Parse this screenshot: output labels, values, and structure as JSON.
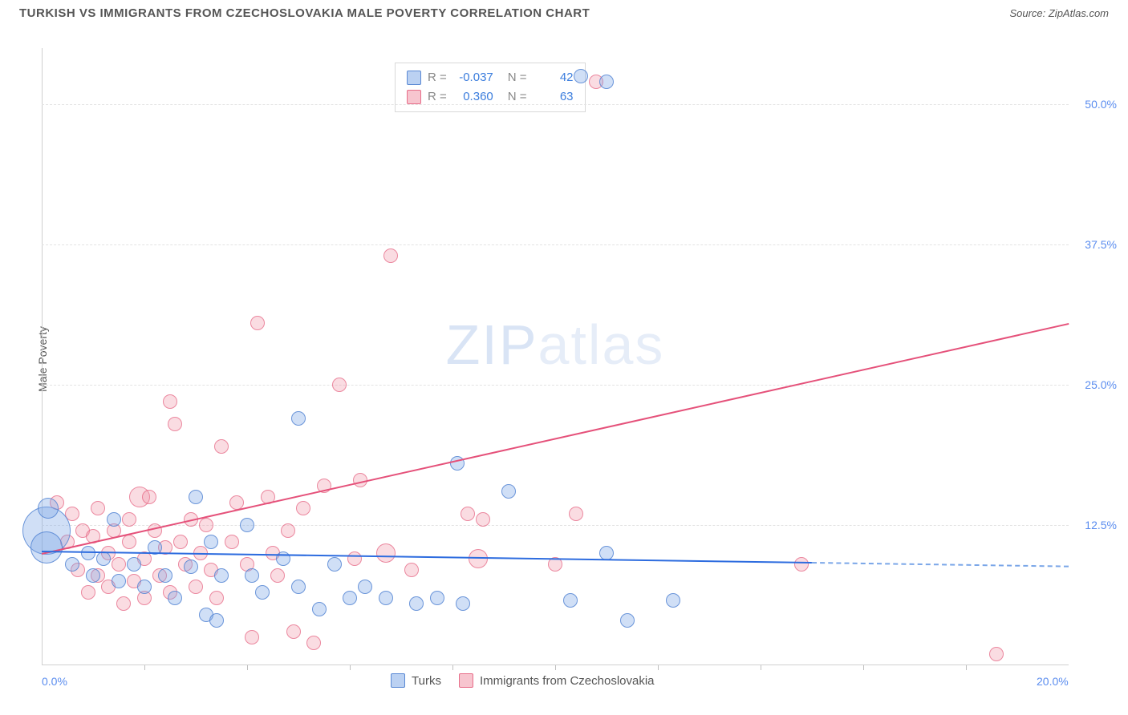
{
  "header": {
    "title": "TURKISH VS IMMIGRANTS FROM CZECHOSLOVAKIA MALE POVERTY CORRELATION CHART",
    "source": "Source: ZipAtlas.com"
  },
  "chart": {
    "type": "scatter",
    "ylabel": "Male Poverty",
    "watermark_a": "ZIP",
    "watermark_b": "atlas",
    "xlim": [
      0,
      20
    ],
    "ylim": [
      0,
      55
    ],
    "y_ticks": [
      {
        "v": 12.5,
        "label": "12.5%"
      },
      {
        "v": 25.0,
        "label": "25.0%"
      },
      {
        "v": 37.5,
        "label": "37.5%"
      },
      {
        "v": 50.0,
        "label": "50.0%"
      }
    ],
    "x_ticks_minor": [
      2,
      4,
      6,
      8,
      10,
      12,
      14,
      16,
      18
    ],
    "x_labels": [
      {
        "v": 0,
        "label": "0.0%"
      },
      {
        "v": 20,
        "label": "20.0%"
      }
    ],
    "colors": {
      "blue_fill": "rgba(120,164,230,0.35)",
      "blue_stroke": "rgba(80,130,210,0.8)",
      "pink_fill": "rgba(240,140,160,0.3)",
      "pink_stroke": "rgba(230,100,130,0.7)",
      "blue_line": "#2d6cdf",
      "pink_line": "#e5517a",
      "grid": "#e3e3e3",
      "background": "#ffffff",
      "tick_text": "#5b8def"
    },
    "marker_radius_default": 9,
    "legend_top": {
      "rows": [
        {
          "swatch": "blue",
          "r_label": "R =",
          "r_val": "-0.037",
          "n_label": "N =",
          "n_val": "42"
        },
        {
          "swatch": "pink",
          "r_label": "R =",
          "r_val": "0.360",
          "n_label": "N =",
          "n_val": "63"
        }
      ]
    },
    "legend_bottom": [
      {
        "swatch": "blue",
        "label": "Turks"
      },
      {
        "swatch": "pink",
        "label": "Immigrants from Czechoslovakia"
      }
    ],
    "trend_lines": {
      "blue": {
        "x1": 0,
        "y1": 10.2,
        "x2": 15,
        "y2": 9.2,
        "dash_to_x": 20
      },
      "pink": {
        "x1": 0,
        "y1": 10.0,
        "x2": 20,
        "y2": 30.5
      }
    },
    "series": {
      "blue": [
        {
          "x": 0.1,
          "y": 12.0,
          "r": 30
        },
        {
          "x": 0.1,
          "y": 10.5,
          "r": 20
        },
        {
          "x": 0.12,
          "y": 14.0,
          "r": 13
        },
        {
          "x": 0.6,
          "y": 9.0
        },
        {
          "x": 0.9,
          "y": 10.0
        },
        {
          "x": 1.0,
          "y": 8.0
        },
        {
          "x": 1.2,
          "y": 9.5
        },
        {
          "x": 1.4,
          "y": 13.0
        },
        {
          "x": 1.5,
          "y": 7.5
        },
        {
          "x": 1.8,
          "y": 9.0
        },
        {
          "x": 2.0,
          "y": 7.0
        },
        {
          "x": 2.2,
          "y": 10.5
        },
        {
          "x": 2.4,
          "y": 8.0
        },
        {
          "x": 2.6,
          "y": 6.0
        },
        {
          "x": 2.9,
          "y": 8.8
        },
        {
          "x": 3.0,
          "y": 15.0
        },
        {
          "x": 3.2,
          "y": 4.5
        },
        {
          "x": 3.3,
          "y": 11.0
        },
        {
          "x": 3.4,
          "y": 4.0
        },
        {
          "x": 3.5,
          "y": 8.0
        },
        {
          "x": 4.0,
          "y": 12.5
        },
        {
          "x": 4.1,
          "y": 8.0
        },
        {
          "x": 4.3,
          "y": 6.5
        },
        {
          "x": 4.7,
          "y": 9.5
        },
        {
          "x": 5.0,
          "y": 22.0
        },
        {
          "x": 5.0,
          "y": 7.0
        },
        {
          "x": 5.4,
          "y": 5.0
        },
        {
          "x": 5.7,
          "y": 9.0
        },
        {
          "x": 6.0,
          "y": 6.0
        },
        {
          "x": 6.3,
          "y": 7.0
        },
        {
          "x": 6.7,
          "y": 6.0
        },
        {
          "x": 7.3,
          "y": 5.5
        },
        {
          "x": 7.7,
          "y": 6.0
        },
        {
          "x": 8.1,
          "y": 18.0
        },
        {
          "x": 8.2,
          "y": 5.5
        },
        {
          "x": 9.1,
          "y": 15.5
        },
        {
          "x": 10.3,
          "y": 5.8
        },
        {
          "x": 11.4,
          "y": 4.0
        },
        {
          "x": 12.3,
          "y": 5.8
        },
        {
          "x": 11.0,
          "y": 10.0
        },
        {
          "x": 11.0,
          "y": 52.0
        },
        {
          "x": 10.5,
          "y": 52.5
        }
      ],
      "pink": [
        {
          "x": 0.3,
          "y": 14.5
        },
        {
          "x": 0.5,
          "y": 11.0
        },
        {
          "x": 0.6,
          "y": 13.5
        },
        {
          "x": 0.7,
          "y": 8.5
        },
        {
          "x": 0.8,
          "y": 12.0
        },
        {
          "x": 0.9,
          "y": 6.5
        },
        {
          "x": 1.0,
          "y": 11.5
        },
        {
          "x": 1.1,
          "y": 8.0
        },
        {
          "x": 1.1,
          "y": 14.0
        },
        {
          "x": 1.3,
          "y": 10.0
        },
        {
          "x": 1.3,
          "y": 7.0
        },
        {
          "x": 1.4,
          "y": 12.0
        },
        {
          "x": 1.5,
          "y": 9.0
        },
        {
          "x": 1.6,
          "y": 5.5
        },
        {
          "x": 1.7,
          "y": 13.0
        },
        {
          "x": 1.7,
          "y": 11.0
        },
        {
          "x": 1.8,
          "y": 7.5
        },
        {
          "x": 1.9,
          "y": 15.0,
          "r": 13
        },
        {
          "x": 2.0,
          "y": 9.5
        },
        {
          "x": 2.0,
          "y": 6.0
        },
        {
          "x": 2.1,
          "y": 15.0
        },
        {
          "x": 2.2,
          "y": 12.0
        },
        {
          "x": 2.3,
          "y": 8.0
        },
        {
          "x": 2.4,
          "y": 10.5
        },
        {
          "x": 2.5,
          "y": 23.5
        },
        {
          "x": 2.5,
          "y": 6.5
        },
        {
          "x": 2.6,
          "y": 21.5
        },
        {
          "x": 2.7,
          "y": 11.0
        },
        {
          "x": 2.8,
          "y": 9.0
        },
        {
          "x": 2.9,
          "y": 13.0
        },
        {
          "x": 3.0,
          "y": 7.0
        },
        {
          "x": 3.1,
          "y": 10.0
        },
        {
          "x": 3.2,
          "y": 12.5
        },
        {
          "x": 3.3,
          "y": 8.5
        },
        {
          "x": 3.4,
          "y": 6.0
        },
        {
          "x": 3.5,
          "y": 19.5
        },
        {
          "x": 3.7,
          "y": 11.0
        },
        {
          "x": 3.8,
          "y": 14.5
        },
        {
          "x": 4.0,
          "y": 9.0
        },
        {
          "x": 4.1,
          "y": 2.5
        },
        {
          "x": 4.2,
          "y": 30.5
        },
        {
          "x": 4.4,
          "y": 15.0
        },
        {
          "x": 4.5,
          "y": 10.0
        },
        {
          "x": 4.6,
          "y": 8.0
        },
        {
          "x": 4.8,
          "y": 12.0
        },
        {
          "x": 4.9,
          "y": 3.0
        },
        {
          "x": 5.1,
          "y": 14.0
        },
        {
          "x": 5.3,
          "y": 2.0
        },
        {
          "x": 5.5,
          "y": 16.0
        },
        {
          "x": 5.8,
          "y": 25.0
        },
        {
          "x": 6.1,
          "y": 9.5
        },
        {
          "x": 6.2,
          "y": 16.5
        },
        {
          "x": 6.7,
          "y": 10.0,
          "r": 12
        },
        {
          "x": 6.8,
          "y": 36.5
        },
        {
          "x": 7.2,
          "y": 8.5
        },
        {
          "x": 8.3,
          "y": 13.5
        },
        {
          "x": 8.6,
          "y": 13.0
        },
        {
          "x": 8.5,
          "y": 9.5,
          "r": 12
        },
        {
          "x": 10.0,
          "y": 9.0
        },
        {
          "x": 10.4,
          "y": 13.5
        },
        {
          "x": 10.8,
          "y": 52.0
        },
        {
          "x": 14.8,
          "y": 9.0
        },
        {
          "x": 18.6,
          "y": 1.0
        }
      ]
    }
  }
}
